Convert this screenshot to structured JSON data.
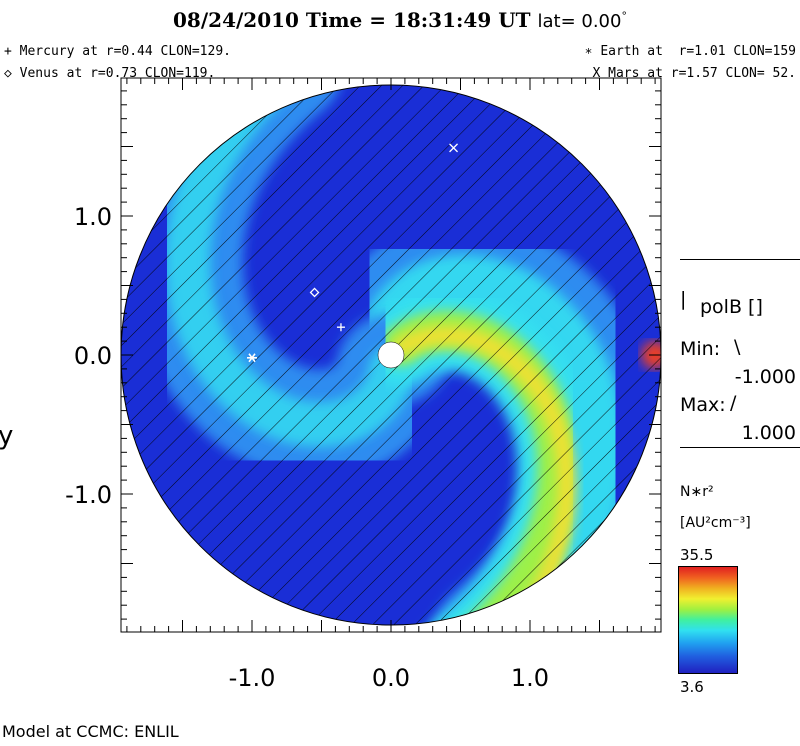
{
  "header": {
    "title": "08/24/2010 Time = 18:31:49 UT",
    "lat_label": "lat= 0.00",
    "lat_unit": "°"
  },
  "legend": {
    "mercury": "+ Mercury at r=0.44 CLON=129.",
    "venus": "◇ Venus at r=0.73 CLON=119.",
    "earth": "∗ Earth at  r=1.01 CLON=159",
    "mars": "X Mars at r=1.57 CLON= 52."
  },
  "side_panel": {
    "polarity_label": "polB []",
    "min_label": "Min:",
    "min_value": "-1.000",
    "max_label": "Max:",
    "max_value": "1.000",
    "colorbar_label": "N∗r²",
    "colorbar_unit": "[AU²cm⁻³]",
    "colorbar_max": "35.5",
    "colorbar_min": "3.6"
  },
  "footer": {
    "model": "Model at CCMC: ENLIL"
  },
  "colors": {
    "low": "#1a2ed6",
    "mid_low": "#2f8cf0",
    "mid": "#35e0f0",
    "mid_high": "#9cf04a",
    "high": "#f0e030",
    "peak": "#f04020",
    "sun": "#ffffff"
  },
  "chart_data": {
    "type": "heatmap",
    "title": "08/24/2010 Time = 18:31:49 UT",
    "xlabel": "",
    "ylabel": "y",
    "xlim": [
      -1.9,
      1.9
    ],
    "ylim": [
      -1.9,
      1.9
    ],
    "x_ticks": [
      -1.0,
      0.0,
      1.0
    ],
    "x_tick_labels": [
      "-1.0",
      "0.0",
      "1.0"
    ],
    "y_ticks": [
      -1.0,
      0.0,
      1.0
    ],
    "y_tick_labels": [
      "-1.0",
      "0.0",
      "1.0"
    ],
    "colorbar": {
      "min": 3.6,
      "max": 35.5,
      "label": "N∗r²",
      "unit": "[AU²cm⁻³]"
    },
    "planets": [
      {
        "name": "Mercury",
        "marker": "+",
        "r": 0.44,
        "clon": 129,
        "x": -0.36,
        "y": 0.2
      },
      {
        "name": "Venus",
        "marker": "◇",
        "r": 0.73,
        "clon": 119,
        "x": -0.55,
        "y": 0.45
      },
      {
        "name": "Earth",
        "marker": "∗",
        "r": 1.01,
        "clon": 159,
        "x": -1.0,
        "y": -0.02
      },
      {
        "name": "Mars",
        "marker": "X",
        "r": 1.57,
        "clon": 52,
        "x": 0.45,
        "y": 1.49
      }
    ]
  }
}
